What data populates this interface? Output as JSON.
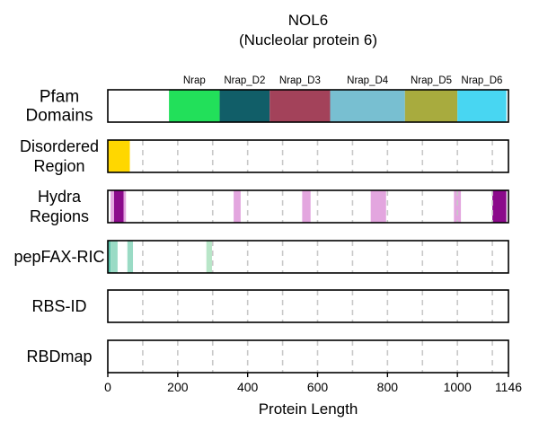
{
  "chart_data": {
    "type": "track",
    "title": "NOL6",
    "subtitle": "(Nucleolar protein 6)",
    "xlabel": "Protein Length",
    "xlim": [
      0,
      1146
    ],
    "xticks": [
      0,
      200,
      400,
      600,
      800,
      1000,
      1146
    ],
    "gridlines": [
      100,
      200,
      300,
      400,
      500,
      600,
      700,
      800,
      900,
      1000,
      1100
    ],
    "tracks": [
      {
        "label": [
          "Pfam",
          "Domains"
        ],
        "kind": "pfam",
        "segments": [
          {
            "name": "Nrap",
            "start": 175,
            "end": 320,
            "color": "#22e05a"
          },
          {
            "name": "Nrap_D2",
            "start": 320,
            "end": 463,
            "color": "#115e68"
          },
          {
            "name": "Nrap_D3",
            "start": 463,
            "end": 636,
            "color": "#a3425a"
          },
          {
            "name": "Nrap_D4",
            "start": 636,
            "end": 850,
            "color": "#78bfd1"
          },
          {
            "name": "Nrap_D5",
            "start": 850,
            "end": 1000,
            "color": "#a8ab3e"
          },
          {
            "name": "Nrap_D6",
            "start": 1000,
            "end": 1140,
            "color": "#48d6f2"
          }
        ]
      },
      {
        "label": [
          "Disordered",
          "Region"
        ],
        "kind": "region",
        "segments": [
          {
            "start": 1,
            "end": 63,
            "color": "#ffd700"
          }
        ]
      },
      {
        "label": [
          "Hydra",
          "Regions"
        ],
        "kind": "region",
        "segments": [
          {
            "start": 8,
            "end": 52,
            "color": "#e3a6df"
          },
          {
            "start": 18,
            "end": 45,
            "color": "#8b0a8b"
          },
          {
            "start": 360,
            "end": 380,
            "color": "#e3a6df"
          },
          {
            "start": 556,
            "end": 580,
            "color": "#e3a6df"
          },
          {
            "start": 752,
            "end": 796,
            "color": "#e3a6df"
          },
          {
            "start": 990,
            "end": 1010,
            "color": "#e3a6df"
          },
          {
            "start": 1100,
            "end": 1140,
            "color": "#8b0a8b"
          }
        ]
      },
      {
        "label": [
          "pepFAX-RIC"
        ],
        "kind": "region",
        "segments": [
          {
            "start": 1,
            "end": 8,
            "color": "#5cc0a8"
          },
          {
            "start": 8,
            "end": 28,
            "color": "#9adbc5"
          },
          {
            "start": 56,
            "end": 72,
            "color": "#9adbc5"
          },
          {
            "start": 282,
            "end": 298,
            "color": "#b8e6c8"
          }
        ]
      },
      {
        "label": [
          "RBS-ID"
        ],
        "kind": "region",
        "segments": []
      },
      {
        "label": [
          "RBDmap"
        ],
        "kind": "region",
        "segments": []
      }
    ]
  }
}
